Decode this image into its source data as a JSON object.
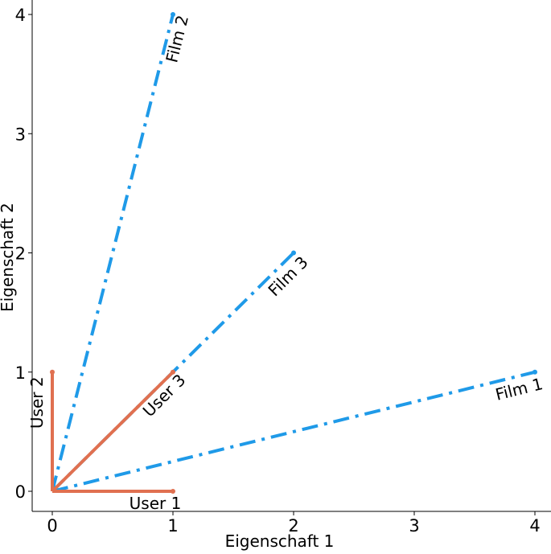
{
  "chart_data": {
    "type": "line",
    "title": "",
    "xlabel": "Eigenschaft 1",
    "ylabel": "Eigenschaft 2",
    "xlim": [
      0,
      4
    ],
    "ylim": [
      0,
      4
    ],
    "x_ticks": [
      0,
      1,
      2,
      3,
      4
    ],
    "y_ticks": [
      0,
      1,
      2,
      3,
      4
    ],
    "grid": false,
    "series": [
      {
        "name": "User 1",
        "group": "user",
        "x": [
          0,
          1
        ],
        "y": [
          0,
          0
        ]
      },
      {
        "name": "User 2",
        "group": "user",
        "x": [
          0,
          0
        ],
        "y": [
          0,
          1
        ]
      },
      {
        "name": "User 3",
        "group": "user",
        "x": [
          0,
          1
        ],
        "y": [
          0,
          1
        ]
      },
      {
        "name": "Film 1",
        "group": "film",
        "x": [
          0,
          4
        ],
        "y": [
          0,
          1
        ]
      },
      {
        "name": "Film 2",
        "group": "film",
        "x": [
          0,
          1
        ],
        "y": [
          0,
          4
        ]
      },
      {
        "name": "Film 3",
        "group": "film",
        "x": [
          0,
          2
        ],
        "y": [
          0,
          2
        ]
      }
    ],
    "colors": {
      "user": "#e07050",
      "film": "#1f9ae8",
      "axis": "#000000"
    },
    "line_styles": {
      "user": "solid",
      "film": "dashdot"
    }
  }
}
